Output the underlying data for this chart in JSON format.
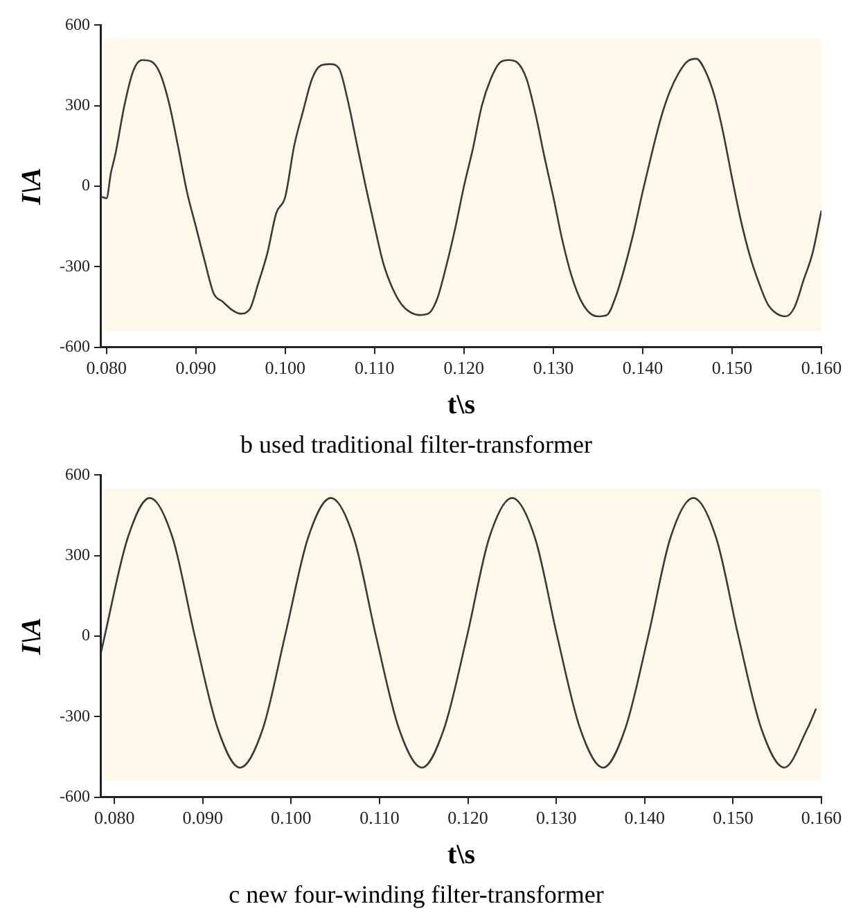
{
  "chart_data": [
    {
      "type": "line",
      "title": "b used traditional filter-transformer",
      "xlabel": "t\\s",
      "ylabel": "I\\A",
      "xlim": [
        0.0794,
        0.16
      ],
      "xticks": [
        {
          "value": 0.08,
          "label": "0.080"
        },
        {
          "value": 0.09,
          "label": "0.090"
        },
        {
          "value": 0.1,
          "label": "0.100"
        },
        {
          "value": 0.11,
          "label": "0.110"
        },
        {
          "value": 0.12,
          "label": "0.120"
        },
        {
          "value": 0.13,
          "label": "0.130"
        },
        {
          "value": 0.14,
          "label": "0.140"
        },
        {
          "value": 0.15,
          "label": "0.150"
        },
        {
          "value": 0.16,
          "label": "0.160"
        }
      ],
      "ylim": [
        -600,
        600
      ],
      "yticks": [
        -600,
        -300,
        0,
        300,
        600
      ],
      "grid": false,
      "legend": false,
      "marker": "none",
      "series": [
        {
          "color": "#3a3a3a",
          "x": [
            0.0795,
            0.08,
            0.0805,
            0.081,
            0.082,
            0.083,
            0.084,
            0.085,
            0.086,
            0.087,
            0.088,
            0.089,
            0.09,
            0.091,
            0.092,
            0.093,
            0.094,
            0.095,
            0.096,
            0.097,
            0.098,
            0.099,
            0.1,
            0.101,
            0.102,
            0.103,
            0.104,
            0.105,
            0.106,
            0.107,
            0.108,
            0.109,
            0.11,
            0.111,
            0.112,
            0.113,
            0.114,
            0.115,
            0.116,
            0.117,
            0.118,
            0.119,
            0.12,
            0.121,
            0.122,
            0.123,
            0.124,
            0.125,
            0.126,
            0.127,
            0.128,
            0.129,
            0.13,
            0.131,
            0.132,
            0.133,
            0.134,
            0.135,
            0.136,
            0.137,
            0.138,
            0.139,
            0.14,
            0.141,
            0.142,
            0.143,
            0.144,
            0.145,
            0.146,
            0.147,
            0.148,
            0.149,
            0.15,
            0.151,
            0.152,
            0.153,
            0.154,
            0.155,
            0.156,
            0.157,
            0.158,
            0.159,
            0.16
          ],
          "values": [
            -40,
            -45,
            50,
            120,
            300,
            430,
            470,
            465,
            420,
            310,
            150,
            -20,
            -150,
            -280,
            -400,
            -430,
            -460,
            -475,
            -460,
            -360,
            -250,
            -100,
            -40,
            150,
            280,
            400,
            450,
            455,
            440,
            320,
            160,
            0,
            -150,
            -290,
            -380,
            -440,
            -470,
            -480,
            -475,
            -420,
            -300,
            -160,
            0,
            140,
            300,
            400,
            460,
            470,
            460,
            400,
            270,
            110,
            -40,
            -200,
            -330,
            -420,
            -470,
            -485,
            -480,
            -410,
            -300,
            -170,
            -20,
            120,
            250,
            350,
            420,
            465,
            475,
            430,
            340,
            200,
            30,
            -130,
            -260,
            -360,
            -440,
            -475,
            -485,
            -450,
            -350,
            -250,
            -90
          ]
        }
      ]
    },
    {
      "type": "line",
      "title": "c new four-winding filter-transformer",
      "xlabel": "t\\s",
      "ylabel": "I\\A",
      "xlim": [
        0.0785,
        0.16
      ],
      "xticks": [
        {
          "value": 0.08,
          "label": "0.080"
        },
        {
          "value": 0.09,
          "label": "0.090"
        },
        {
          "value": 0.1,
          "label": "0.100"
        },
        {
          "value": 0.11,
          "label": "0.110"
        },
        {
          "value": 0.12,
          "label": "0.120"
        },
        {
          "value": 0.13,
          "label": "0.130"
        },
        {
          "value": 0.14,
          "label": "0.140"
        },
        {
          "value": 0.15,
          "label": "0.150"
        },
        {
          "value": 0.16,
          "label": "0.160"
        }
      ],
      "ylim": [
        -600,
        600
      ],
      "yticks": [
        -600,
        -300,
        0,
        300,
        600
      ],
      "grid": false,
      "legend": false,
      "marker": "none",
      "series": [
        {
          "color": "#3a3a3a",
          "x": [
            0.0785,
            0.0789,
            0.0815,
            0.084,
            0.0866,
            0.0891,
            0.0917,
            0.0942,
            0.0968,
            0.0993,
            0.1019,
            0.1045,
            0.1071,
            0.1096,
            0.1122,
            0.1148,
            0.1173,
            0.1199,
            0.1224,
            0.125,
            0.1276,
            0.1301,
            0.1327,
            0.1353,
            0.1378,
            0.1404,
            0.1429,
            0.1455,
            0.1481,
            0.1506,
            0.1532,
            0.1558,
            0.1584,
            0.1594
          ],
          "values": [
            -60,
            0,
            365,
            515,
            365,
            0,
            -345,
            -490,
            -345,
            0,
            365,
            515,
            365,
            0,
            -345,
            -490,
            -345,
            0,
            365,
            515,
            365,
            0,
            -345,
            -490,
            -345,
            0,
            365,
            515,
            365,
            0,
            -345,
            -490,
            -345,
            -270
          ]
        }
      ]
    }
  ]
}
